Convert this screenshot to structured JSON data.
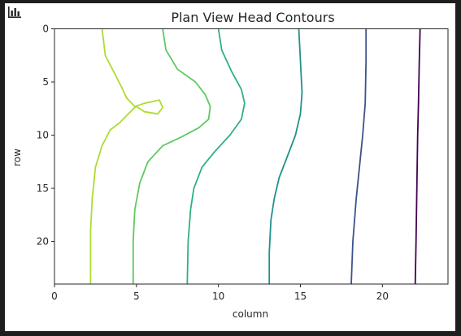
{
  "toolbar": {
    "icon": "bar-chart-icon"
  },
  "chart_data": {
    "type": "line",
    "title": "Plan View Head Contours",
    "xlabel": "column",
    "ylabel": "row",
    "xlim": [
      0,
      24
    ],
    "ylim": [
      24,
      0
    ],
    "y_inverted": true,
    "xticks": [
      0,
      5,
      10,
      15,
      20
    ],
    "yticks": [
      0,
      5,
      10,
      15,
      20
    ],
    "grid": false,
    "series": [
      {
        "color": "#440154",
        "points": [
          [
            22.3,
            0
          ],
          [
            22.25,
            3
          ],
          [
            22.2,
            7
          ],
          [
            22.15,
            10
          ],
          [
            22.1,
            15
          ],
          [
            22.05,
            20
          ],
          [
            22.0,
            24
          ]
        ]
      },
      {
        "color": "#3b528b",
        "points": [
          [
            19.0,
            0
          ],
          [
            19.0,
            3
          ],
          [
            18.95,
            7
          ],
          [
            18.8,
            10
          ],
          [
            18.6,
            13
          ],
          [
            18.4,
            16
          ],
          [
            18.2,
            20
          ],
          [
            18.1,
            24
          ]
        ]
      },
      {
        "color": "#21918c",
        "points": [
          [
            14.9,
            0
          ],
          [
            15.0,
            3
          ],
          [
            15.1,
            6
          ],
          [
            15.0,
            8
          ],
          [
            14.7,
            10
          ],
          [
            14.2,
            12
          ],
          [
            13.7,
            14
          ],
          [
            13.4,
            16
          ],
          [
            13.2,
            18
          ],
          [
            13.1,
            21
          ],
          [
            13.1,
            24
          ]
        ]
      },
      {
        "color": "#2db27d",
        "points": [
          [
            10.0,
            0
          ],
          [
            10.2,
            2
          ],
          [
            10.8,
            4
          ],
          [
            11.4,
            5.7
          ],
          [
            11.6,
            7
          ],
          [
            11.4,
            8.5
          ],
          [
            10.7,
            10
          ],
          [
            9.8,
            11.5
          ],
          [
            9.0,
            13
          ],
          [
            8.5,
            15
          ],
          [
            8.3,
            17
          ],
          [
            8.15,
            20
          ],
          [
            8.1,
            24
          ]
        ]
      },
      {
        "color": "#5ec962",
        "points": [
          [
            6.6,
            0
          ],
          [
            6.8,
            2
          ],
          [
            7.5,
            3.8
          ],
          [
            8.6,
            5
          ],
          [
            9.2,
            6.2
          ],
          [
            9.5,
            7.3
          ],
          [
            9.4,
            8.5
          ],
          [
            8.8,
            9.3
          ],
          [
            7.7,
            10.2
          ],
          [
            6.6,
            11
          ],
          [
            5.7,
            12.5
          ],
          [
            5.2,
            14.5
          ],
          [
            4.9,
            17
          ],
          [
            4.8,
            20
          ],
          [
            4.8,
            24
          ]
        ]
      },
      {
        "color": "#addc30",
        "points": [
          [
            2.9,
            0
          ],
          [
            3.1,
            2.5
          ],
          [
            3.6,
            4
          ],
          [
            4.1,
            5.5
          ],
          [
            4.4,
            6.5
          ],
          [
            4.9,
            7.3
          ],
          [
            5.5,
            7.0
          ],
          [
            6.4,
            6.7
          ],
          [
            6.6,
            7.4
          ],
          [
            6.3,
            8.0
          ],
          [
            5.5,
            7.8
          ],
          [
            5.0,
            7.3
          ],
          [
            4.9,
            7.4
          ],
          [
            4.5,
            8.0
          ],
          [
            4.0,
            8.8
          ],
          [
            3.4,
            9.5
          ],
          [
            2.9,
            11
          ],
          [
            2.5,
            13
          ],
          [
            2.3,
            16
          ],
          [
            2.2,
            19
          ],
          [
            2.2,
            24
          ]
        ]
      }
    ]
  }
}
